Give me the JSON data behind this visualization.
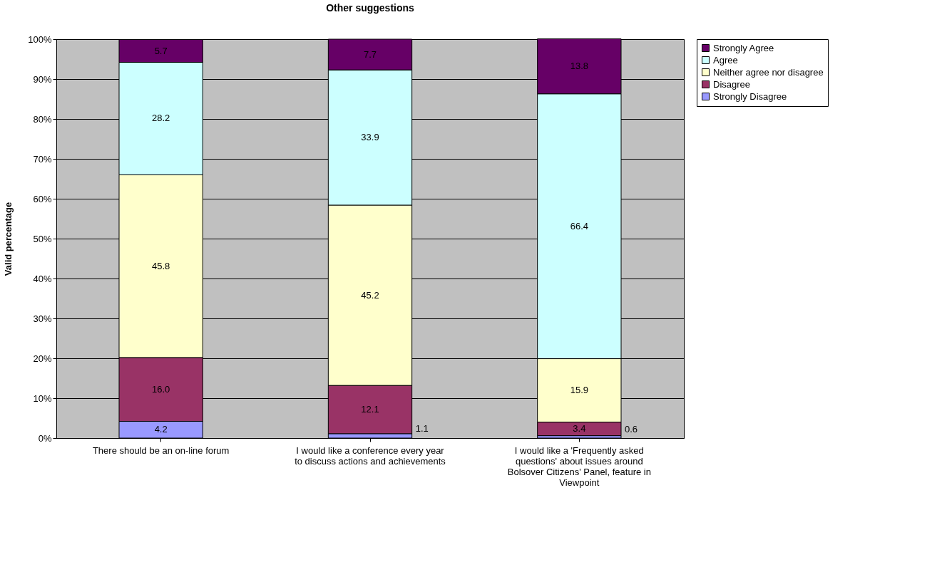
{
  "chart_data": {
    "type": "bar",
    "title": "Other suggestions",
    "ylabel": "Valid percentage",
    "categories": [
      "There should be an on-line forum",
      "I would like a conference every year to discuss actions and achievements",
      "I would like a 'Frequently asked questions' about issues around Bolsover Citizens' Panel, feature in Viewpoint"
    ],
    "stacked": true,
    "series": [
      {
        "name": "Strongly Disagree",
        "color": "#9999ff",
        "values": [
          4.2,
          1.1,
          0.6
        ]
      },
      {
        "name": "Disagree",
        "color": "#993366",
        "values": [
          16.0,
          12.1,
          3.4
        ]
      },
      {
        "name": "Neither agree nor disagree",
        "color": "#ffffcc",
        "values": [
          45.8,
          45.2,
          15.9
        ]
      },
      {
        "name": "Agree",
        "color": "#ccffff",
        "values": [
          28.2,
          33.9,
          66.4
        ]
      },
      {
        "name": "Strongly Agree",
        "color": "#660066",
        "values": [
          5.7,
          7.7,
          13.8
        ]
      }
    ],
    "value_labels": [
      [
        "4.2",
        "1.1",
        "0.6"
      ],
      [
        "16.0",
        "12.1",
        "3.4"
      ],
      [
        "45.8",
        "45.2",
        "15.9"
      ],
      [
        "28.2",
        "33.9",
        "66.4"
      ],
      [
        "5.7",
        "7.7",
        "13.8"
      ]
    ],
    "ylim": [
      0,
      100
    ],
    "yticks": [
      {
        "value": 0,
        "label": "0%"
      },
      {
        "value": 10,
        "label": "10%"
      },
      {
        "value": 20,
        "label": "20%"
      },
      {
        "value": 30,
        "label": "30%"
      },
      {
        "value": 40,
        "label": "40%"
      },
      {
        "value": 50,
        "label": "50%"
      },
      {
        "value": 60,
        "label": "60%"
      },
      {
        "value": 70,
        "label": "70%"
      },
      {
        "value": 80,
        "label": "80%"
      },
      {
        "value": 90,
        "label": "90%"
      },
      {
        "value": 100,
        "label": "100%"
      }
    ],
    "grid": "y",
    "legend": "right"
  }
}
